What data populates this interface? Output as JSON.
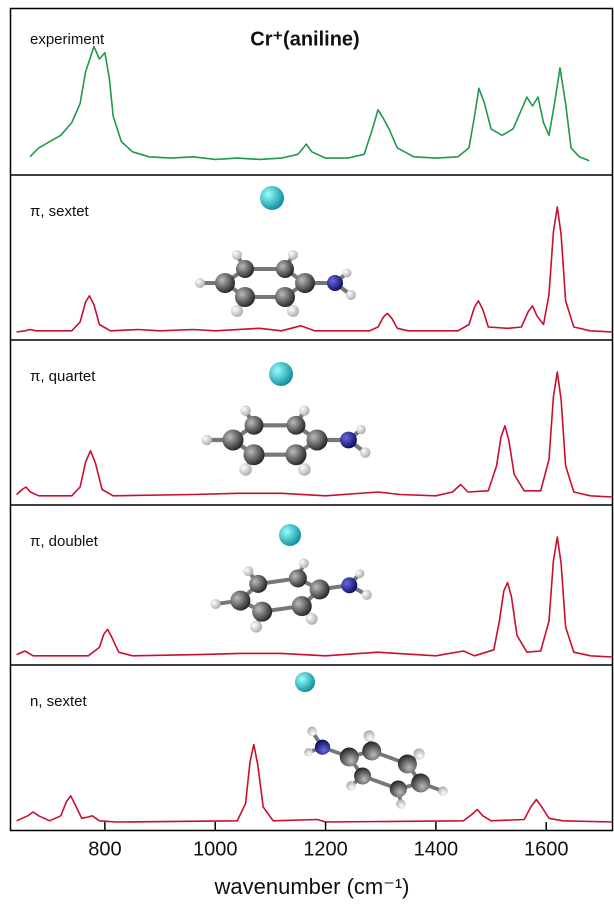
{
  "chart_data": [
    {
      "type": "line",
      "label": "experiment",
      "title": "Cr⁺(aniline)",
      "color": "#1f9a4a",
      "xlim": [
        628,
        1721
      ],
      "ylim": [
        0,
        100
      ],
      "x": [
        664,
        680,
        700,
        720,
        740,
        755,
        765,
        775,
        780,
        790,
        800,
        808,
        815,
        830,
        850,
        880,
        920,
        960,
        1000,
        1040,
        1080,
        1120,
        1150,
        1165,
        1175,
        1200,
        1240,
        1270,
        1285,
        1295,
        1305,
        1315,
        1330,
        1360,
        1400,
        1440,
        1460,
        1470,
        1478,
        1488,
        1500,
        1520,
        1540,
        1555,
        1565,
        1575,
        1585,
        1595,
        1605,
        1615,
        1625,
        1635,
        1645,
        1660,
        1678
      ],
      "values": [
        8,
        15,
        20,
        25,
        35,
        50,
        75,
        88,
        95,
        85,
        90,
        70,
        40,
        20,
        12,
        8,
        7,
        8,
        6,
        7,
        6,
        7,
        10,
        18,
        12,
        7,
        7,
        10,
        30,
        45,
        38,
        30,
        15,
        8,
        7,
        8,
        15,
        40,
        62,
        50,
        30,
        25,
        30,
        45,
        55,
        48,
        55,
        35,
        25,
        50,
        78,
        50,
        15,
        8,
        5
      ]
    },
    {
      "type": "line",
      "label": "π, sextet",
      "color": "#c8102e",
      "xlim": [
        628,
        1721
      ],
      "ylim": [
        0,
        100
      ],
      "x": [
        640,
        655,
        665,
        675,
        740,
        755,
        765,
        772,
        780,
        790,
        810,
        860,
        900,
        960,
        1000,
        1080,
        1120,
        1155,
        1180,
        1280,
        1295,
        1305,
        1312,
        1320,
        1330,
        1350,
        1440,
        1460,
        1470,
        1477,
        1485,
        1495,
        1530,
        1555,
        1567,
        1575,
        1583,
        1595,
        1605,
        1613,
        1620,
        1627,
        1635,
        1650,
        1680,
        1720
      ],
      "values": [
        0,
        1,
        2,
        1,
        1,
        8,
        24,
        29,
        22,
        6,
        1,
        2,
        1,
        2,
        1,
        3,
        1,
        5,
        1,
        1,
        4,
        12,
        15,
        11,
        3,
        1,
        1,
        6,
        20,
        25,
        18,
        4,
        3,
        4,
        16,
        21,
        13,
        6,
        30,
        80,
        100,
        78,
        25,
        4,
        1,
        0
      ]
    },
    {
      "type": "line",
      "label": "π, quartet",
      "color": "#c8102e",
      "xlim": [
        628,
        1721
      ],
      "ylim": [
        0,
        100
      ],
      "x": [
        640,
        650,
        657,
        665,
        680,
        740,
        755,
        765,
        774,
        783,
        795,
        815,
        960,
        1040,
        1120,
        1200,
        1295,
        1335,
        1400,
        1430,
        1445,
        1458,
        1495,
        1510,
        1518,
        1525,
        1532,
        1542,
        1560,
        1590,
        1605,
        1613,
        1620,
        1627,
        1635,
        1650,
        1680,
        1720
      ],
      "values": [
        2,
        6,
        8,
        4,
        1,
        1,
        8,
        28,
        37,
        27,
        6,
        1,
        2,
        3,
        3,
        1,
        4,
        2,
        1,
        4,
        10,
        4,
        5,
        25,
        48,
        57,
        46,
        18,
        5,
        5,
        30,
        80,
        100,
        78,
        25,
        4,
        1,
        0
      ]
    },
    {
      "type": "line",
      "label": "π, doublet",
      "color": "#c8102e",
      "xlim": [
        628,
        1721
      ],
      "ylim": [
        0,
        100
      ],
      "x": [
        640,
        655,
        670,
        770,
        790,
        798,
        805,
        812,
        825,
        850,
        970,
        1045,
        1120,
        1200,
        1295,
        1400,
        1450,
        1470,
        1505,
        1515,
        1523,
        1530,
        1537,
        1547,
        1565,
        1590,
        1605,
        1613,
        1620,
        1627,
        1635,
        1650,
        1680,
        1720
      ],
      "values": [
        2,
        5,
        1,
        1,
        8,
        19,
        23,
        17,
        4,
        1,
        2,
        3,
        3,
        1,
        4,
        1,
        5,
        1,
        6,
        30,
        55,
        62,
        50,
        18,
        4,
        5,
        30,
        80,
        100,
        78,
        25,
        4,
        1,
        0
      ]
    },
    {
      "type": "line",
      "label": "n, sextet",
      "color": "#c8102e",
      "xlim": [
        628,
        1721
      ],
      "ylim": [
        0,
        100
      ],
      "x_label": "wavenumber (cm⁻¹)",
      "xticks": [
        800,
        1000,
        1200,
        1400,
        1600
      ],
      "x": [
        640,
        660,
        670,
        680,
        700,
        720,
        730,
        738,
        746,
        758,
        770,
        777,
        790,
        820,
        1040,
        1055,
        1063,
        1070,
        1077,
        1087,
        1105,
        1185,
        1200,
        1450,
        1465,
        1475,
        1485,
        1500,
        1560,
        1572,
        1582,
        1592,
        1605,
        1630,
        1720
      ],
      "values": [
        1,
        5,
        8,
        5,
        1,
        5,
        16,
        21,
        14,
        3,
        4,
        5,
        1,
        0,
        1,
        15,
        48,
        62,
        46,
        12,
        1,
        2,
        0,
        1,
        6,
        10,
        5,
        1,
        2,
        12,
        18,
        12,
        3,
        1,
        0
      ]
    }
  ]
}
